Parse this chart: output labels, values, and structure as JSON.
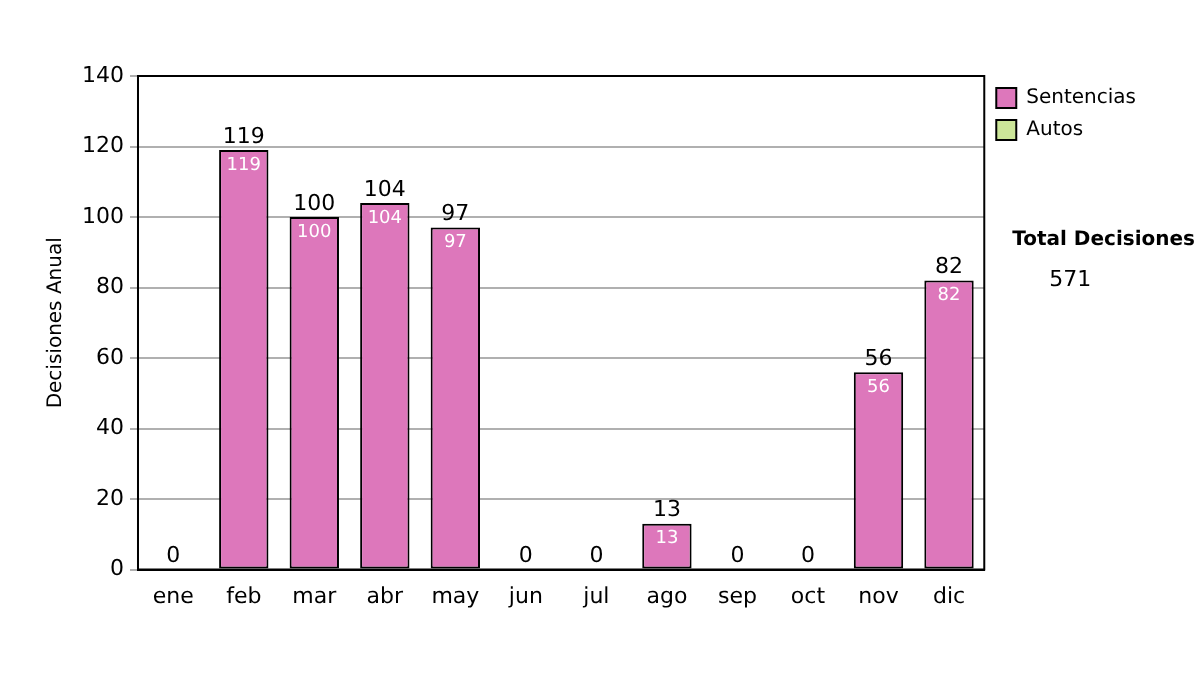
{
  "chart_data": {
    "type": "bar",
    "stacked": true,
    "ylabel": "Decisiones Anual",
    "categories": [
      "ene",
      "feb",
      "mar",
      "abr",
      "may",
      "jun",
      "jul",
      "ago",
      "sep",
      "oct",
      "nov",
      "dic"
    ],
    "series": [
      {
        "name": "Sentencias",
        "color": "#dd77bb",
        "values": [
          0,
          119,
          100,
          104,
          97,
          0,
          0,
          13,
          0,
          0,
          56,
          82
        ],
        "value_labels": [
          null,
          "119",
          "100",
          "104",
          "97",
          null,
          null,
          "13",
          null,
          null,
          "56",
          "82"
        ]
      },
      {
        "name": "Autos",
        "color": "#cce699",
        "values": [
          0,
          0,
          0,
          0,
          0,
          0,
          0,
          0,
          0,
          0,
          0,
          0
        ]
      }
    ],
    "totals": [
      "0",
      "119",
      "100",
      "104",
      "97",
      "0",
      "0",
      "13",
      "0",
      "0",
      "56",
      "82"
    ],
    "ylim": [
      0,
      140
    ],
    "yticks": [
      0,
      20,
      40,
      60,
      80,
      100,
      120,
      140
    ],
    "grid": "y",
    "legend": "right",
    "annotations": [
      "Total Decisiones",
      "571"
    ]
  }
}
